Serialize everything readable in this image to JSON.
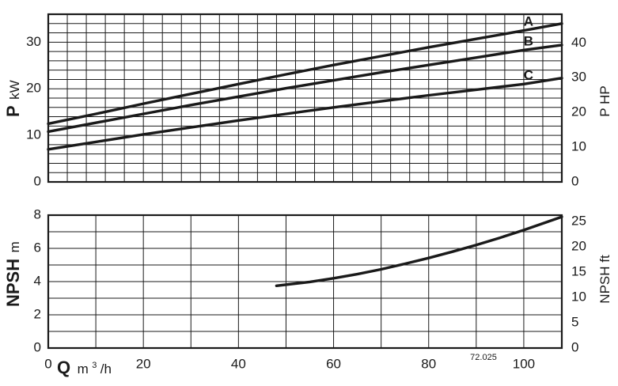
{
  "chart_data": [
    {
      "type": "line",
      "x": [
        0,
        10,
        20,
        30,
        40,
        50,
        60,
        70,
        80,
        90,
        100,
        108
      ],
      "series": [
        {
          "name": "A",
          "values": [
            12.5,
            14.6,
            16.8,
            18.9,
            21.0,
            23.1,
            25.1,
            27.0,
            28.9,
            30.7,
            32.5,
            34.0
          ]
        },
        {
          "name": "B",
          "values": [
            10.8,
            12.7,
            14.6,
            16.5,
            18.3,
            20.1,
            21.8,
            23.5,
            25.1,
            26.7,
            28.3,
            29.4
          ]
        },
        {
          "name": "C",
          "values": [
            7.0,
            8.6,
            10.2,
            11.7,
            13.2,
            14.6,
            16.0,
            17.3,
            18.6,
            19.8,
            21.0,
            22.3
          ]
        }
      ],
      "xlim": [
        0,
        108
      ],
      "ylim": [
        0,
        36
      ],
      "y_ticks": [
        "0",
        "10",
        "20",
        "30"
      ],
      "y_tick_values": [
        0,
        10,
        20,
        30
      ],
      "y2_ticks": [
        "0",
        "10",
        "20",
        "30",
        "40"
      ],
      "y2_tick_values": [
        0,
        10,
        20,
        30,
        40
      ],
      "y2_factor": 1.341,
      "ylabel": {
        "symbol": "P",
        "unit": "kW"
      },
      "y2label": "P HP",
      "grid": true
    },
    {
      "type": "line",
      "x": [
        48,
        55,
        60,
        65,
        70,
        75,
        80,
        85,
        90,
        95,
        100,
        108
      ],
      "series": [
        {
          "name": "",
          "values": [
            3.75,
            3.98,
            4.2,
            4.45,
            4.74,
            5.07,
            5.42,
            5.8,
            6.2,
            6.64,
            7.1,
            7.9
          ]
        }
      ],
      "xlim": [
        0,
        108
      ],
      "ylim": [
        0,
        8
      ],
      "y_ticks": [
        "0",
        "2",
        "4",
        "6",
        "8"
      ],
      "y_tick_values": [
        0,
        2,
        4,
        6,
        8
      ],
      "y2_ticks": [
        "0",
        "5",
        "10",
        "15",
        "20",
        "25"
      ],
      "y2_tick_values": [
        0,
        5,
        10,
        15,
        20,
        25
      ],
      "y2_factor": 3.281,
      "x_ticks": [
        "0",
        "20",
        "40",
        "60",
        "80",
        "100"
      ],
      "x_tick_values": [
        0,
        20,
        40,
        60,
        80,
        100
      ],
      "ylabel": {
        "symbol": "NPSH",
        "unit": "m"
      },
      "y2label": "NPSH ft",
      "xlabel": {
        "symbol": "Q",
        "unit": "m",
        "sup": "3",
        "unit_tail": "/h"
      },
      "code": "72.025",
      "grid": true
    }
  ]
}
